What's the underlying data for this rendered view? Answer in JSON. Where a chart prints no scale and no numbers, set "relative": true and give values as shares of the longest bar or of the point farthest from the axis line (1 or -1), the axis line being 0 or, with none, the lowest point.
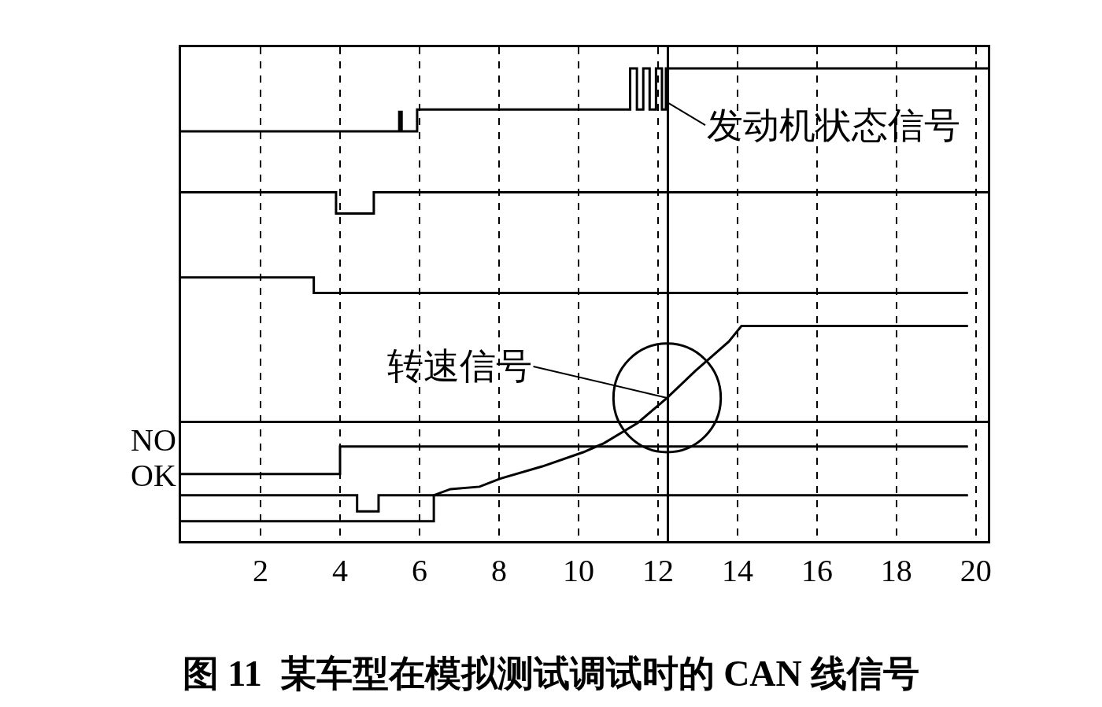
{
  "chart_data": {
    "type": "step",
    "title": "图 11  某车型在模拟测试调试时的 CAN 线信号",
    "relative": true,
    "xlim": [
      0,
      20.3
    ],
    "xticks": [
      2,
      4,
      6,
      8,
      10,
      12,
      14,
      16,
      18,
      20
    ],
    "grid": "x",
    "tick_labels": "x",
    "series": [
      {
        "color": "#000000",
        "x": [
          0,
          5.49,
          5.55,
          5.94,
          11.3,
          11.47,
          11.63,
          11.79,
          11.95,
          12.1,
          12.2,
          20.3
        ],
        "values": [
          0.867,
          0.908,
          0.867,
          0.913,
          1.0,
          0.913,
          1.0,
          0.913,
          1.0,
          0.913,
          1.0,
          1.0
        ]
      },
      {
        "color": "#000000",
        "x": [
          0,
          3.9,
          4.85,
          20.3
        ],
        "values": [
          0.738,
          0.693,
          0.738,
          0.738
        ]
      },
      {
        "color": "#000000",
        "x": [
          0,
          3.34,
          19.8
        ],
        "values": [
          0.558,
          0.525,
          0.525
        ]
      },
      {
        "color": "#000000",
        "x": [
          0,
          20.3
        ],
        "values": [
          0.252,
          0.252
        ]
      },
      {
        "color": "#000000",
        "x": [
          0,
          4.0,
          19.8
        ],
        "values": [
          0.142,
          0.2,
          0.2
        ]
      },
      {
        "color": "#000000",
        "x": [
          0,
          4.43,
          4.97,
          19.8
        ],
        "values": [
          0.097,
          0.063,
          0.097,
          0.097
        ]
      },
      {
        "type": "line",
        "color": "#000000",
        "x": [
          0,
          6.36,
          6.36,
          6.78,
          7.51,
          8.03,
          9.09,
          10.12,
          10.64,
          11.49,
          12.23,
          12.94,
          13.78,
          14.1,
          19.8
        ],
        "values": [
          0.042,
          0.042,
          0.097,
          0.11,
          0.115,
          0.132,
          0.158,
          0.188,
          0.207,
          0.25,
          0.303,
          0.36,
          0.422,
          0.455,
          0.455
        ]
      }
    ],
    "ref_lines": [
      {
        "axis": "x",
        "value": 12.25
      }
    ],
    "annotations": [
      {
        "text": "发动机状态信号",
        "x": 12.2,
        "y": 0.93
      },
      {
        "text": "转速信号",
        "x": 12.23,
        "y": 0.303
      },
      "NO",
      "OK"
    ]
  }
}
